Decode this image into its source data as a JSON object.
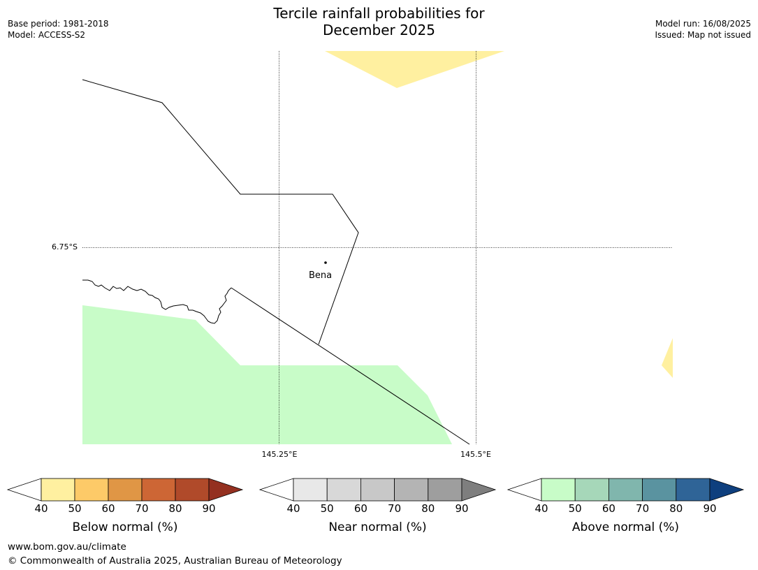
{
  "header": {
    "title_line1": "Tercile rainfall probabilities for",
    "title_line2": "December 2025",
    "base_period": "Base period: 1981-2018",
    "model": "Model: ACCESS-S2",
    "model_run": "Model run: 16/08/2025",
    "issued": "Issued: Map not issued"
  },
  "map": {
    "place_label": "Bena",
    "lat_label": "6.75°S",
    "lon_labels": [
      "145.25°E",
      "145.5°E"
    ]
  },
  "colorbars": [
    {
      "label": "Below normal (%)",
      "ticks": [
        "40",
        "50",
        "60",
        "70",
        "80",
        "90"
      ],
      "colors": [
        "#fff0a0",
        "#fdca68",
        "#e09645",
        "#cd6635",
        "#b04a2a",
        "#943020"
      ]
    },
    {
      "label": "Near normal (%)",
      "ticks": [
        "40",
        "50",
        "60",
        "70",
        "80",
        "90"
      ],
      "colors": [
        "#e8e8e8",
        "#d8d8d8",
        "#c8c8c8",
        "#b4b4b4",
        "#9e9e9e",
        "#7e7e7e"
      ]
    },
    {
      "label": "Above normal (%)",
      "ticks": [
        "40",
        "50",
        "60",
        "70",
        "80",
        "90"
      ],
      "colors": [
        "#c8fcc8",
        "#a6d7b9",
        "#80b6ad",
        "#5a93a0",
        "#2f6497",
        "#0e3f7e"
      ]
    }
  ],
  "footer": {
    "url": "www.bom.gov.au/climate",
    "copyright": "© Commonwealth of Australia 2025, Australian Bureau of Meteorology"
  }
}
